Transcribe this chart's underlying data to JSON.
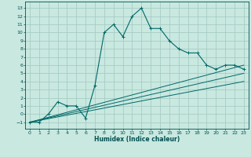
{
  "xlabel": "Humidex (Indice chaleur)",
  "bg_color": "#c8e8e0",
  "grid_color": "#a0c8be",
  "line_color": "#006868",
  "axis_color": "#005050",
  "xlim": [
    -0.5,
    23.5
  ],
  "ylim": [
    -1.8,
    13.8
  ],
  "xticks": [
    0,
    1,
    2,
    3,
    4,
    5,
    6,
    7,
    8,
    9,
    10,
    11,
    12,
    13,
    14,
    15,
    16,
    17,
    18,
    19,
    20,
    21,
    22,
    23
  ],
  "yticks": [
    -1,
    0,
    1,
    2,
    3,
    4,
    5,
    6,
    7,
    8,
    9,
    10,
    11,
    12,
    13
  ],
  "series": [
    [
      0,
      -1
    ],
    [
      1,
      -1
    ],
    [
      2,
      0
    ],
    [
      3,
      1.5
    ],
    [
      4,
      1
    ],
    [
      5,
      1
    ],
    [
      6,
      -0.5
    ],
    [
      7,
      3.5
    ],
    [
      8,
      10
    ],
    [
      9,
      11
    ],
    [
      10,
      9.5
    ],
    [
      11,
      12
    ],
    [
      12,
      13
    ],
    [
      13,
      10.5
    ],
    [
      14,
      10.5
    ],
    [
      15,
      9
    ],
    [
      16,
      8
    ],
    [
      17,
      7.5
    ],
    [
      18,
      7.5
    ],
    [
      19,
      6
    ],
    [
      20,
      5.5
    ],
    [
      21,
      6
    ],
    [
      22,
      6
    ],
    [
      23,
      5.5
    ]
  ],
  "line2": [
    [
      0,
      -1
    ],
    [
      23,
      6.0
    ]
  ],
  "line3": [
    [
      0,
      -1
    ],
    [
      23,
      5.0
    ]
  ],
  "line4": [
    [
      0,
      -1
    ],
    [
      23,
      4.0
    ]
  ]
}
